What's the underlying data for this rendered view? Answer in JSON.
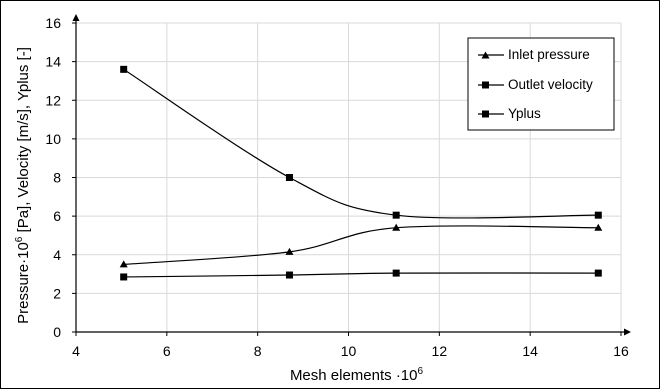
{
  "chart_data": {
    "type": "line",
    "xlabel": "Mesh elements ·10",
    "xlabel_sup": "6",
    "ylabel": "Pressure·10",
    "ylabel_sup": "6",
    "ylabel_rest": " [Pa], Velocity [m/s], Yplus [-]",
    "xlim": [
      4,
      16
    ],
    "ylim": [
      0,
      16
    ],
    "x_ticks": [
      "4",
      "6",
      "8",
      "10",
      "12",
      "14",
      "16"
    ],
    "y_ticks": [
      "0",
      "2",
      "4",
      "6",
      "8",
      "10",
      "12",
      "14",
      "16"
    ],
    "grid": true,
    "legend_position": "top-right",
    "series": [
      {
        "name": "Inlet pressure",
        "marker": "triangle",
        "x": [
          5.05,
          8.7,
          11.05,
          15.5
        ],
        "y": [
          3.5,
          4.15,
          5.4,
          5.4
        ]
      },
      {
        "name": "Outlet velocity",
        "marker": "square",
        "x": [
          5.05,
          8.7,
          11.05,
          15.5
        ],
        "y": [
          2.85,
          2.95,
          3.05,
          3.05
        ]
      },
      {
        "name": "Yplus",
        "marker": "square",
        "x": [
          5.05,
          8.7,
          11.05,
          15.5
        ],
        "y": [
          13.6,
          8.0,
          6.05,
          6.05
        ]
      }
    ],
    "colors": {
      "line": "#000000",
      "grid": "#d9d9d9",
      "background": "#ffffff"
    }
  }
}
